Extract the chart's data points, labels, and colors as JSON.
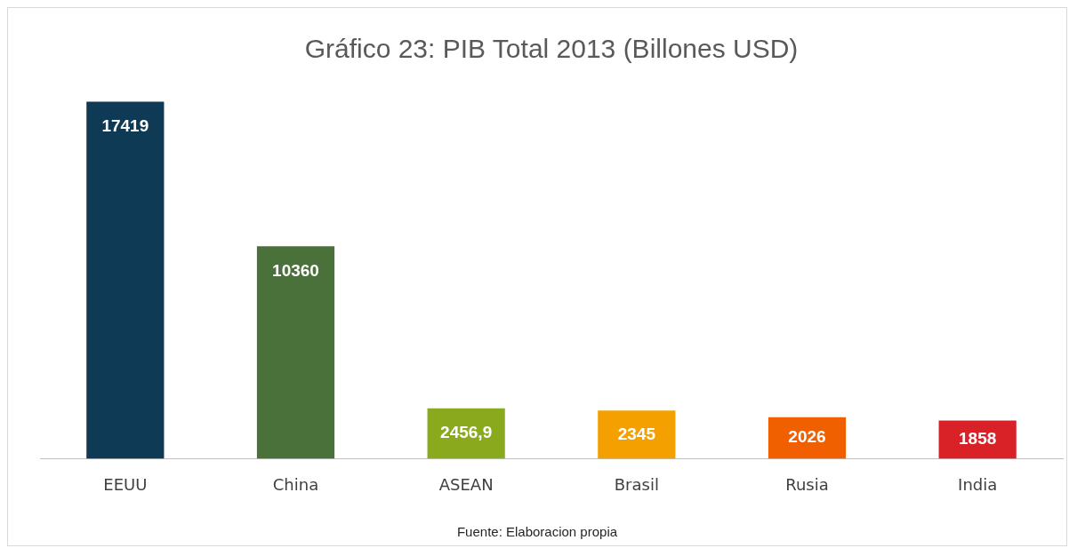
{
  "chart_data": {
    "type": "bar",
    "title": "Gráfico 23: PIB Total 2013 (Billones USD)",
    "categories": [
      "EEUU",
      "China",
      "ASEAN",
      "Brasil",
      "Rusia",
      "India"
    ],
    "values": [
      17419,
      10360,
      2456.9,
      2345,
      2026,
      1858
    ],
    "colors": [
      "#0e3a56",
      "#4a7139",
      "#8aaa1e",
      "#f4a000",
      "#f06000",
      "#d92228"
    ],
    "value_labels": [
      "17419",
      "10360",
      "2456,9",
      "2345",
      "2026",
      "1858"
    ],
    "annotations": [
      "Fuente: Elaboracion propia"
    ],
    "grid": false,
    "legend": false
  }
}
